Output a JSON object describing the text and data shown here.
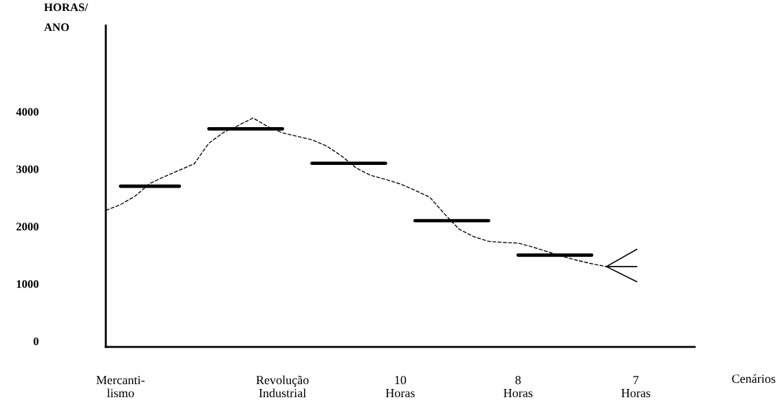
{
  "chart_data": {
    "type": "line",
    "ylabel": "HORAS/\nANO",
    "xlabel": "Cenários",
    "ylim": [
      -100,
      5500
    ],
    "yticks": [
      0,
      1000,
      2000,
      3000,
      4000
    ],
    "grid": false,
    "legend": false,
    "marker": "none",
    "categories": [
      null,
      "Mercanti-\nlismo",
      null,
      null,
      null,
      null,
      null,
      null,
      null,
      null,
      null,
      null,
      "Revolução\nIndustrial",
      null,
      null,
      null,
      null,
      null,
      null,
      null,
      "10\nHoras",
      null,
      null,
      null,
      null,
      null,
      null,
      null,
      "8\nHoras",
      null,
      null,
      null,
      null,
      null,
      null,
      null,
      "7\nHoras",
      null,
      null,
      null,
      null
    ],
    "series": [
      {
        "color": "#000000",
        "line_style": "dashed",
        "values": [
          2280,
          2380,
          2530,
          2750,
          2870,
          2980,
          3090,
          3450,
          3640,
          3760,
          3890,
          3740,
          3630,
          3570,
          3510,
          3400,
          3230,
          3020,
          2890,
          2820,
          2740,
          2630,
          2510,
          2220,
          1950,
          1820,
          1740,
          1720,
          1710,
          1640,
          1560,
          1480,
          1410,
          1350,
          1300,
          null,
          null,
          null,
          null,
          null,
          null
        ]
      },
      {
        "color": "#000000",
        "line_style": "solid",
        "values": [
          null,
          2700,
          2700,
          2700,
          2700,
          2700,
          null,
          3700,
          3700,
          3700,
          3700,
          3700,
          3700,
          null,
          3100,
          3100,
          3100,
          3100,
          3100,
          3100,
          null,
          2100,
          2100,
          2100,
          2100,
          2100,
          2100,
          null,
          1500,
          1500,
          1500,
          1500,
          1500,
          1500,
          null,
          null,
          null,
          null,
          null,
          null,
          null
        ]
      }
    ]
  }
}
